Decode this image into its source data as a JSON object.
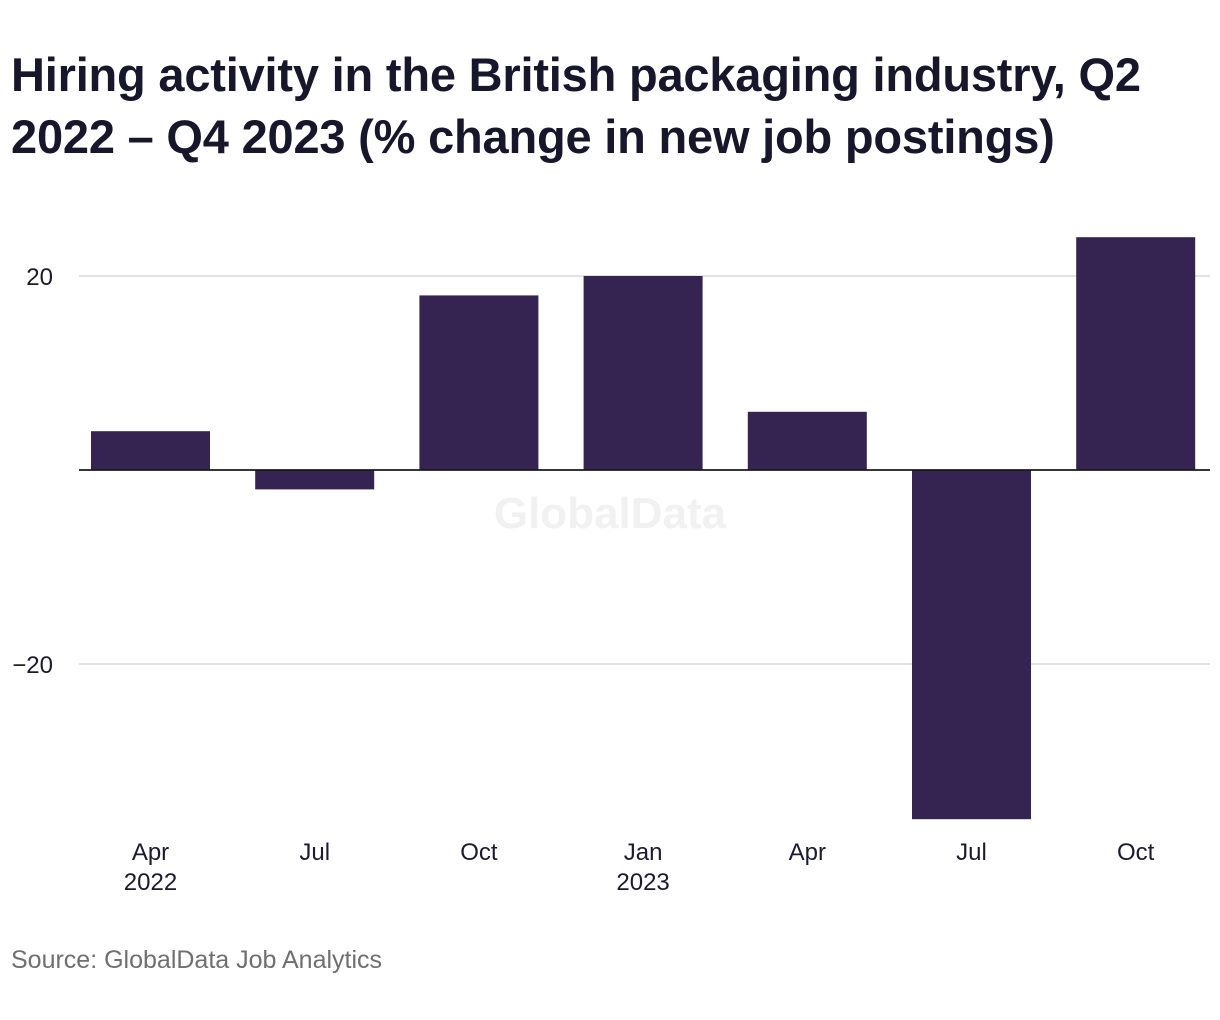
{
  "title": "Hiring activity in the British packaging industry, Q2 2022 – Q4 2023 (% change in new job postings)",
  "source": "Source: GlobalData Job Analytics",
  "watermark": "GlobalData",
  "colors": {
    "bar": "#352452",
    "grid": "#d9d9d9",
    "zero_line": "#1a1a1a",
    "tick_text": "#1b1a2e",
    "source_text": "#6f6f6f",
    "watermark": "#f1f1f1"
  },
  "chart_data": {
    "type": "bar",
    "categories": [
      "Apr 2022",
      "Jul 2022",
      "Oct 2022",
      "Jan 2023",
      "Apr 2023",
      "Jul 2023",
      "Oct 2023"
    ],
    "tick_labels": [
      {
        "line1": "Apr",
        "line2": "2022"
      },
      {
        "line1": "Jul",
        "line2": ""
      },
      {
        "line1": "Oct",
        "line2": ""
      },
      {
        "line1": "Jan",
        "line2": "2023"
      },
      {
        "line1": "Apr",
        "line2": ""
      },
      {
        "line1": "Jul",
        "line2": ""
      },
      {
        "line1": "Oct",
        "line2": ""
      }
    ],
    "values": [
      4,
      -2,
      18,
      20,
      6,
      -36,
      24
    ],
    "ylim": [
      -36,
      24
    ],
    "yticks": [
      20,
      -20
    ],
    "ytick_labels": [
      "20",
      "−20"
    ],
    "grid": true,
    "legend": "none",
    "xlabel": "",
    "ylabel": ""
  }
}
